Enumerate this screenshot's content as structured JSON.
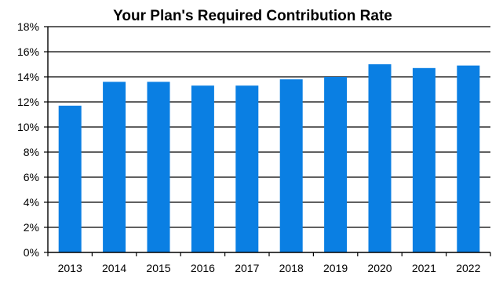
{
  "chart_data": {
    "type": "bar",
    "title": "Your Plan's Required Contribution Rate",
    "xlabel": "",
    "ylabel": "",
    "categories": [
      "2013",
      "2014",
      "2015",
      "2016",
      "2017",
      "2018",
      "2019",
      "2020",
      "2021",
      "2022"
    ],
    "series": [
      {
        "values": [
          11.7,
          13.6,
          13.6,
          13.3,
          13.3,
          13.8,
          14.0,
          15.0,
          14.7,
          14.9
        ]
      }
    ],
    "ylim": [
      0,
      18
    ],
    "yticks": [
      0,
      2,
      4,
      6,
      8,
      10,
      12,
      14,
      16,
      18
    ],
    "ytick_labels": [
      "0%",
      "2%",
      "4%",
      "6%",
      "8%",
      "10%",
      "12%",
      "14%",
      "16%",
      "18%"
    ],
    "grid": "horizontal",
    "legend": "none",
    "bar_color": "#0a7fe3"
  }
}
